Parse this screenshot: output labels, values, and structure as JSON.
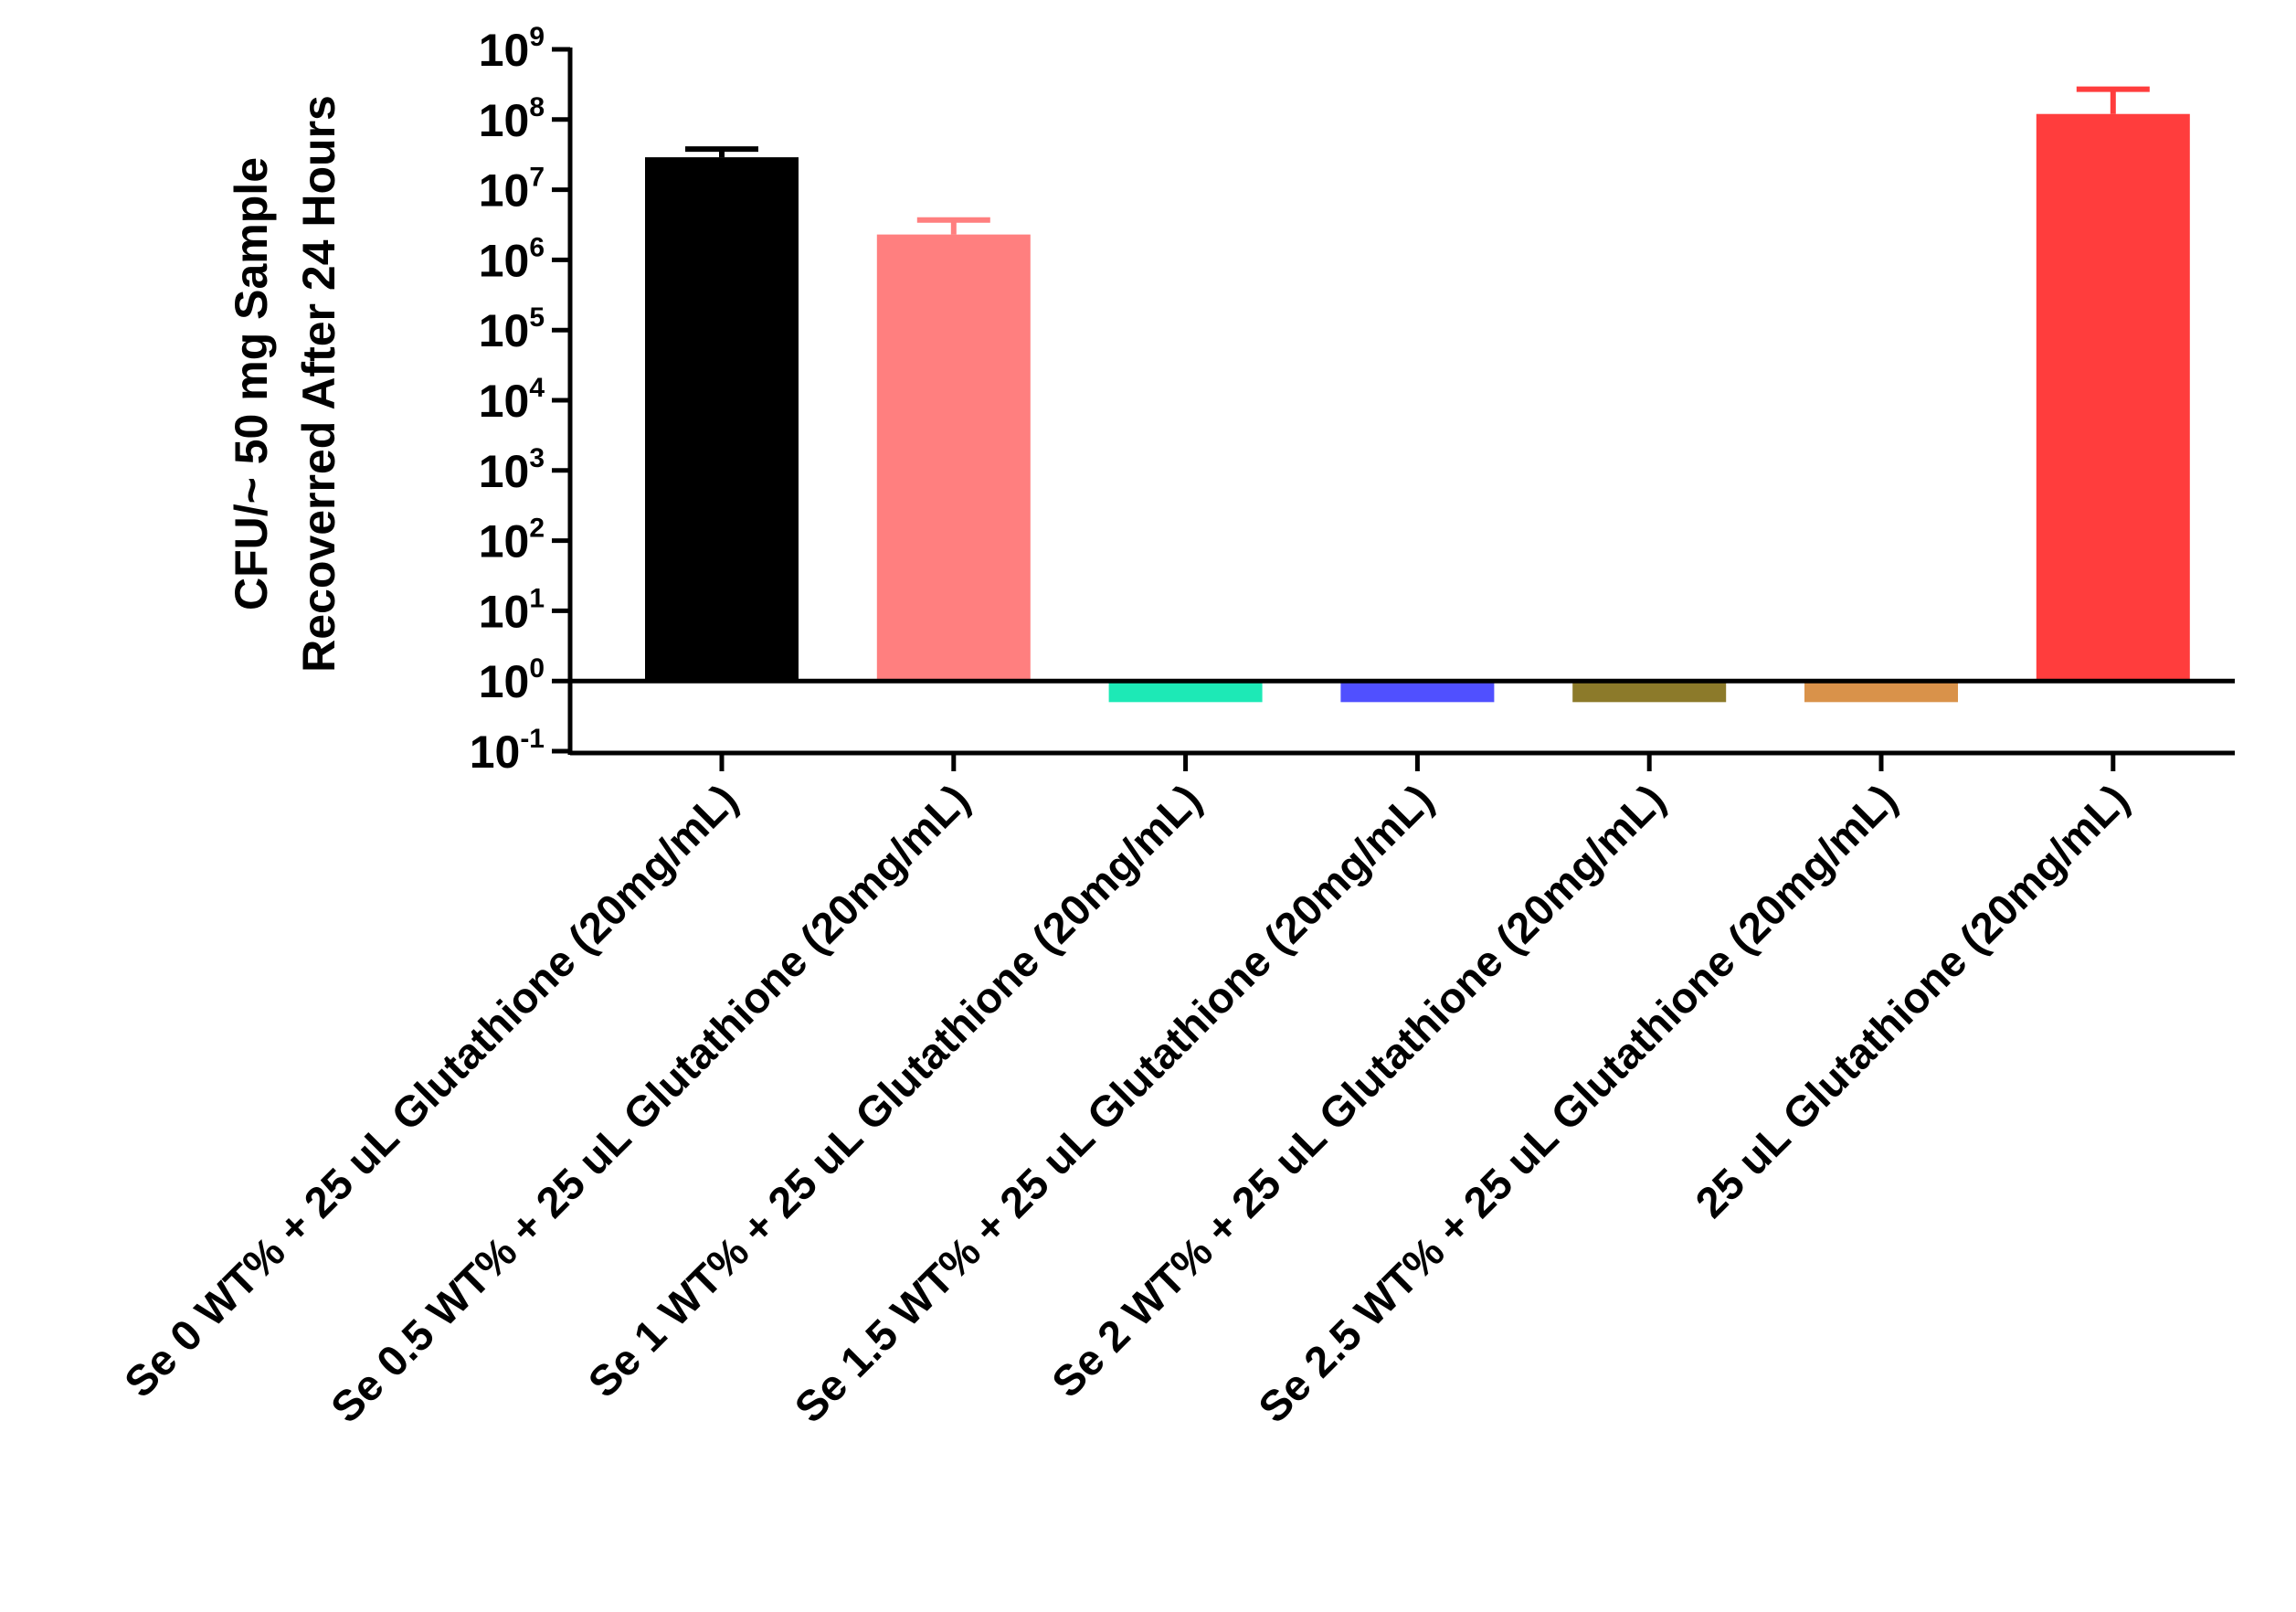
{
  "chart_data": {
    "type": "bar",
    "y_scale": "log10",
    "ylim": [
      0.1,
      1000000000
    ],
    "y_tick_values": [
      0.1,
      1,
      10,
      100,
      1000,
      10000,
      100000,
      1000000,
      10000000,
      100000000,
      1000000000
    ],
    "y_tick_base": "10",
    "y_tick_exponents": [
      "-1",
      "0",
      "1",
      "2",
      "3",
      "4",
      "5",
      "6",
      "7",
      "8",
      "9"
    ],
    "baseline": 1,
    "ylabel_lines": [
      "CFU/~ 50 mg Sample",
      "Recoverred After 24 Hours"
    ],
    "xlabel": "",
    "categories": [
      "Se 0 WT% + 25 uL Glutathione (20mg/mL)",
      "Se 0.5 WT% + 25 uL Glutathione (20mg/mL)",
      "Se 1 WT% + 25 uL Glutathione (20mg/mL)",
      "Se 1.5 WT% + 25 uL Glutathione (20mg/mL)",
      "Se 2 WT% + 25 uL Glutathione (20mg/mL)",
      "Se 2.5 WT% + 25 uL Glutathione (20mg/mL)",
      "25 uL Glutathione (20mg/mL)"
    ],
    "values": [
      29000000,
      2300000,
      0.5,
      0.5,
      0.5,
      0.5,
      120000000
    ],
    "error_upper": [
      38000000,
      3700000,
      null,
      null,
      null,
      null,
      270000000
    ],
    "colors": [
      "#000000",
      "#ff7f7f",
      "#1de9b6",
      "#5050ff",
      "#8c7a2a",
      "#d9924a",
      "#ff3d3d"
    ],
    "error_colors": [
      "#000000",
      "#ff7f7f",
      null,
      null,
      null,
      null,
      "#ff3d3d"
    ],
    "grid": false,
    "legend": "none"
  }
}
